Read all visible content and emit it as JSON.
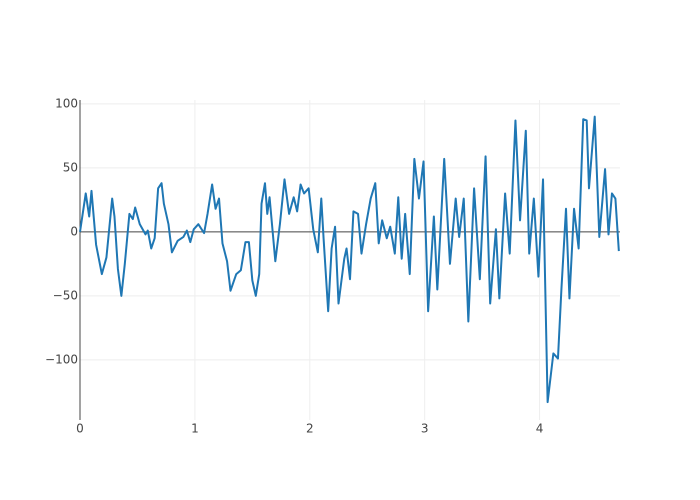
{
  "chart_data": {
    "type": "line",
    "x": [
      0,
      0.05,
      0.08,
      0.1,
      0.14,
      0.19,
      0.23,
      0.28,
      0.3,
      0.33,
      0.36,
      0.39,
      0.43,
      0.46,
      0.48,
      0.52,
      0.57,
      0.59,
      0.62,
      0.65,
      0.68,
      0.71,
      0.73,
      0.77,
      0.8,
      0.85,
      0.9,
      0.93,
      0.96,
      0.99,
      1.03,
      1.08,
      1.11,
      1.15,
      1.18,
      1.21,
      1.24,
      1.28,
      1.31,
      1.36,
      1.4,
      1.44,
      1.47,
      1.5,
      1.53,
      1.56,
      1.58,
      1.61,
      1.63,
      1.65,
      1.7,
      1.74,
      1.78,
      1.82,
      1.86,
      1.89,
      1.92,
      1.95,
      1.99,
      2.03,
      2.07,
      2.1,
      2.12,
      2.16,
      2.19,
      2.22,
      2.25,
      2.3,
      2.32,
      2.35,
      2.38,
      2.42,
      2.45,
      2.49,
      2.53,
      2.57,
      2.6,
      2.63,
      2.67,
      2.7,
      2.74,
      2.77,
      2.8,
      2.83,
      2.87,
      2.91,
      2.95,
      2.99,
      3.03,
      3.08,
      3.11,
      3.17,
      3.22,
      3.27,
      3.3,
      3.34,
      3.38,
      3.43,
      3.48,
      3.53,
      3.57,
      3.62,
      3.65,
      3.7,
      3.74,
      3.79,
      3.83,
      3.88,
      3.91,
      3.95,
      3.99,
      4.03,
      4.07,
      4.12,
      4.16,
      4.19,
      4.23,
      4.26,
      4.3,
      4.34,
      4.38,
      4.41,
      4.43,
      4.48,
      4.52,
      4.57,
      4.6,
      4.63,
      4.66,
      4.69
    ],
    "series": [
      {
        "color": "#1f77b4",
        "values": [
          0,
          30,
          12,
          32,
          -10,
          -33,
          -20,
          26,
          12,
          -29,
          -50,
          -25,
          14,
          10,
          19,
          6,
          -2,
          1,
          -13,
          -5,
          34,
          38,
          22,
          6,
          -16,
          -7,
          -4,
          1,
          -8,
          2,
          6,
          -1,
          14,
          37,
          18,
          26,
          -9,
          -23,
          -46,
          -33,
          -30,
          -8,
          -8,
          -38,
          -50,
          -33,
          22,
          38,
          14,
          27,
          -23,
          6,
          41,
          14,
          27,
          16,
          37,
          30,
          34,
          2,
          -16,
          26,
          -5,
          -62,
          -13,
          4,
          -56,
          -21,
          -13,
          -37,
          16,
          14,
          -17,
          6,
          26,
          38,
          -9,
          9,
          -5,
          4,
          -17,
          27,
          -21,
          14,
          -33,
          57,
          26,
          55,
          -62,
          12,
          -45,
          57,
          -25,
          26,
          -4,
          26,
          -70,
          34,
          -37,
          59,
          -56,
          2,
          -52,
          30,
          -17,
          87,
          9,
          79,
          -17,
          26,
          -35,
          41,
          -133,
          -95,
          -99,
          -45,
          18,
          -52,
          18,
          -13,
          88,
          87,
          34,
          90,
          -4,
          49,
          -2,
          30,
          26,
          -15
        ]
      }
    ],
    "xlim": [
      0,
      4.7
    ],
    "ylim": [
      -147,
      103
    ],
    "xticks": [
      0,
      1,
      2,
      3,
      4
    ],
    "yticks": [
      {
        "value": -100,
        "label": "−100"
      },
      {
        "value": -50,
        "label": "−50"
      },
      0,
      50,
      100
    ],
    "grid": true
  }
}
